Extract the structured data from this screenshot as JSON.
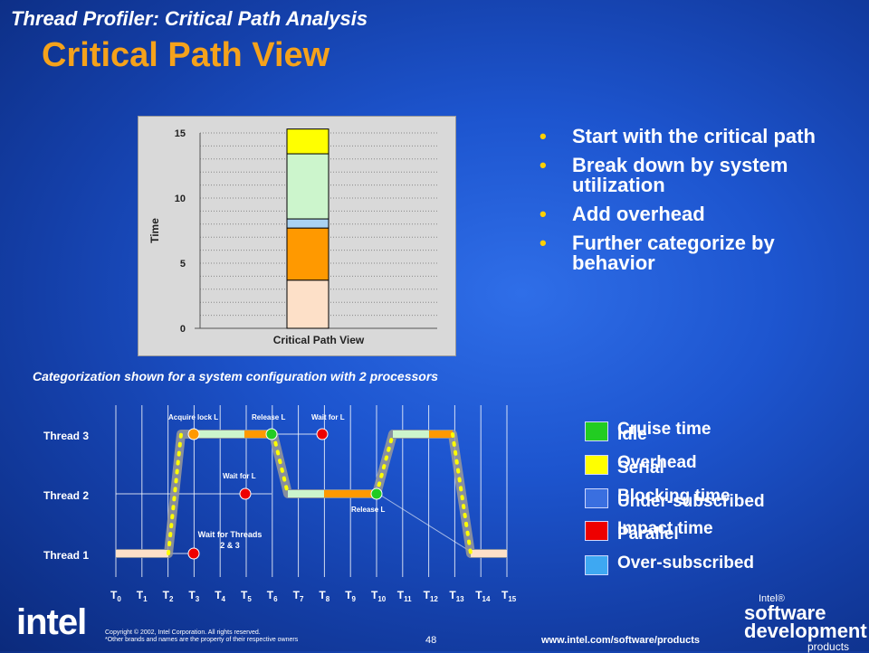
{
  "header": {
    "subtitle": "Thread Profiler: Critical Path Analysis",
    "title": "Critical Path View"
  },
  "chart_data": {
    "type": "bar",
    "categories": [
      "Critical Path View"
    ],
    "xlabel": "Critical Path View",
    "ylabel": "Time",
    "ylim": [
      0,
      15
    ],
    "yticks": [
      "0",
      "5",
      "10",
      "15"
    ],
    "grid": true,
    "stacked": true,
    "series": [
      {
        "value": 3.7,
        "color": "#fde0c8"
      },
      {
        "value": 4.0,
        "color": "#ff9900"
      },
      {
        "value": 0.7,
        "color": "#a9d2f2"
      },
      {
        "value": 5.0,
        "color": "#ccf5cc"
      },
      {
        "value": 1.9,
        "color": "#ffff00"
      }
    ]
  },
  "bullets": [
    "Start with the critical path",
    "Break down by system utilization",
    "Add overhead",
    "Further categorize by behavior"
  ],
  "caption": "Categorization shown for a system configuration with 2 processors",
  "timeline": {
    "threads": [
      "Thread 3",
      "Thread 2",
      "Thread 1"
    ],
    "ticks": [
      "0",
      "1",
      "2",
      "3",
      "4",
      "5",
      "6",
      "7",
      "8",
      "9",
      "10",
      "11",
      "12",
      "13",
      "14",
      "15"
    ],
    "tick_prefix": "T",
    "annotations": {
      "acquire": "Acquire lock L",
      "release_top": "Release L",
      "wait_top": "Wait for L",
      "wait_mid": "Wait for L",
      "wait_threads_1": "Wait for Threads",
      "wait_threads_2": "2 & 3",
      "release_mid": "Release L"
    }
  },
  "legend": [
    {
      "label": "Cruise time",
      "label2": "Idle",
      "color": "#22cc22"
    },
    {
      "label": "Overhead",
      "label2": "Serial",
      "color": "#ffff00"
    },
    {
      "label": "Blocking time",
      "label2": "Under-subscribed",
      "color": "#3a6fe0"
    },
    {
      "label": "Impact time",
      "label2": "Parallel",
      "color": "#ee0000"
    },
    {
      "label": "Over-subscribed",
      "label2": "",
      "color": "#3ea8f2"
    }
  ],
  "footer": {
    "logo": "intel",
    "copyright_1": "Copyright © 2002, Intel Corporation.  All rights reserved.",
    "copyright_2": "*Other brands and names are the property of their respective owners",
    "page": "48",
    "url": "www.intel.com/software/products",
    "brand_1": "Intel®",
    "brand_2": "software",
    "brand_3": "development",
    "brand_4": "products"
  }
}
